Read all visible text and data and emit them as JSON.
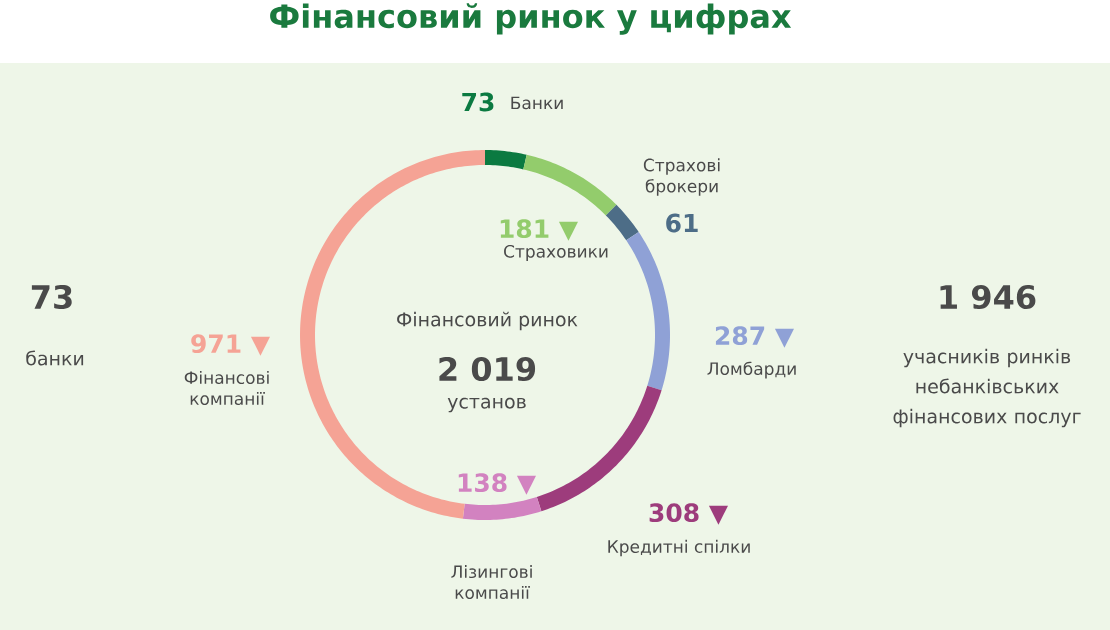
{
  "chart_data": {
    "type": "donut",
    "title": "Фінансовий ринок у цифрах",
    "categories": [
      "Банки",
      "Страховики",
      "Страхові брокери",
      "Ломбарди",
      "Кредитні спілки",
      "Лізингові компанії",
      "Фінансові компанії"
    ],
    "values": [
      73,
      181,
      61,
      287,
      308,
      138,
      971
    ],
    "colors": [
      "#0b7a41",
      "#93cc6c",
      "#4d6d87",
      "#8fa1d6",
      "#9d3c7c",
      "#d282c0",
      "#f5a395"
    ],
    "value_labels": [
      "73",
      "181 ▼",
      "61",
      "287 ▼",
      "308 ▼",
      "138 ▼",
      "971 ▼"
    ],
    "annotations": [
      "73",
      "банки",
      "1 946",
      "учасників ринків небанківських фінансових послуг",
      "Фінансовий ринок",
      "2 019",
      "установ"
    ]
  }
}
